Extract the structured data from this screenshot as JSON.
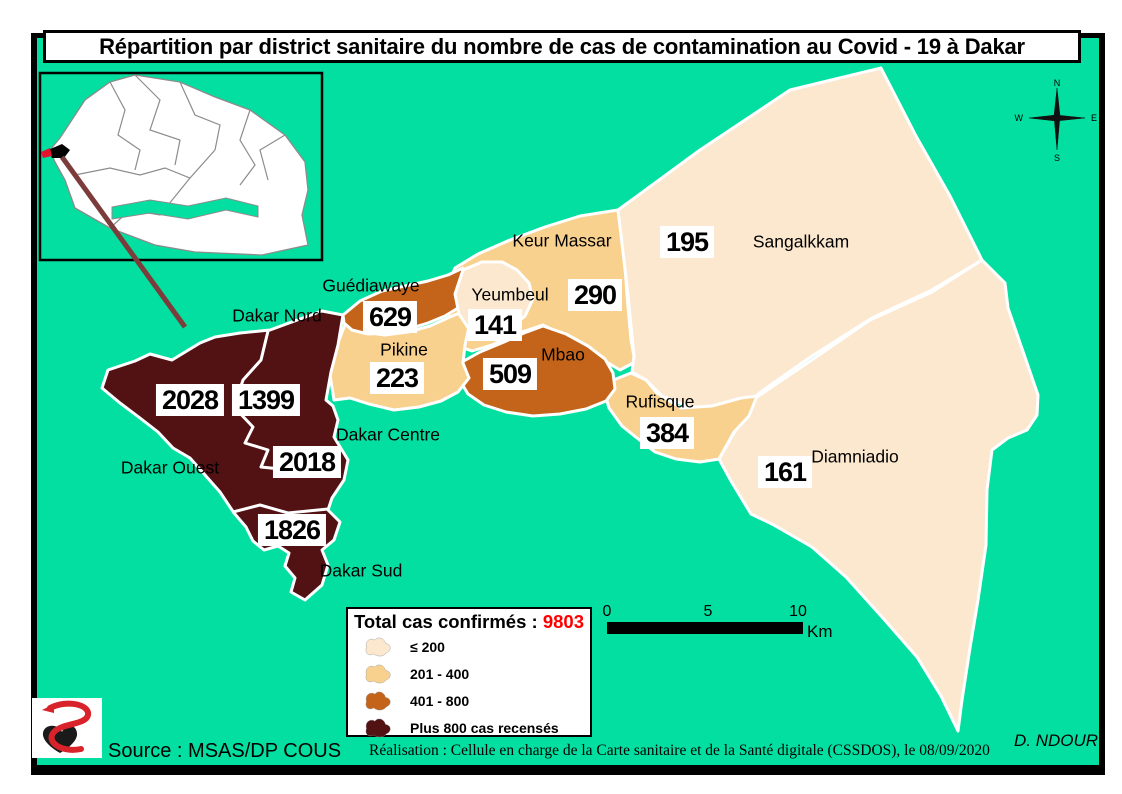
{
  "title": "Répartition par district sanitaire du nombre de cas de contamination au Covid - 19 à Dakar",
  "map": {
    "districts": [
      {
        "id": "dakar-ouest",
        "name": "Dakar Ouest",
        "cases": "2028",
        "class_index": 3
      },
      {
        "id": "dakar-nord",
        "name": "Dakar Nord",
        "cases": "1399",
        "class_index": 3
      },
      {
        "id": "dakar-centre",
        "name": "Dakar Centre",
        "cases": "2018",
        "class_index": 3
      },
      {
        "id": "dakar-sud",
        "name": "Dakar Sud",
        "cases": "1826",
        "class_index": 3
      },
      {
        "id": "guediawaye",
        "name": "Guédiawaye",
        "cases": "629",
        "class_index": 2
      },
      {
        "id": "pikine",
        "name": "Pikine",
        "cases": "223",
        "class_index": 1
      },
      {
        "id": "yeumbeul",
        "name": "Yeumbeul",
        "cases": "141",
        "class_index": 0
      },
      {
        "id": "keur-massar",
        "name": "Keur Massar",
        "cases": "290",
        "class_index": 1
      },
      {
        "id": "mbao",
        "name": "Mbao",
        "cases": "509",
        "class_index": 2
      },
      {
        "id": "rufisque",
        "name": "Rufisque",
        "cases": "384",
        "class_index": 1
      },
      {
        "id": "sangalkkam",
        "name": "Sangalkkam",
        "cases": "195",
        "class_index": 0
      },
      {
        "id": "diamniadio",
        "name": "Diamniadio",
        "cases": "161",
        "class_index": 0
      }
    ]
  },
  "legend": {
    "title": "Total cas confirmés : ",
    "total": "9803",
    "classes": [
      {
        "label": "≤ 200",
        "color": "#FBE8CF"
      },
      {
        "label": "201 - 400",
        "color": "#F9D18E"
      },
      {
        "label": "401 - 800",
        "color": "#C4641A"
      },
      {
        "label": "Plus 800 cas recensés",
        "color": "#521113"
      }
    ]
  },
  "scalebar": {
    "ticks": [
      "0",
      "5",
      "10"
    ],
    "unit": "Km"
  },
  "compass": {
    "n": "N",
    "s": "S",
    "e": "E",
    "w": "W"
  },
  "footer": {
    "source": "Source : MSAS/DP COUS",
    "realisation": "Réalisation : Cellule en charge  de la Carte sanitaire et de la Santé digitale  (CSSDOS), le 08/09/2020",
    "author": "D. NDOUR"
  },
  "colors": {
    "sea": "#02DFA0",
    "boundary": "#FFFFFF",
    "frame": "#000000",
    "leader_line": "#7C3C3C",
    "total_red": "#FF0000",
    "logo_red": "#D8232A",
    "inset_country_fill": "#FFFFFF",
    "inset_region_stroke": "#8C8C8C"
  }
}
